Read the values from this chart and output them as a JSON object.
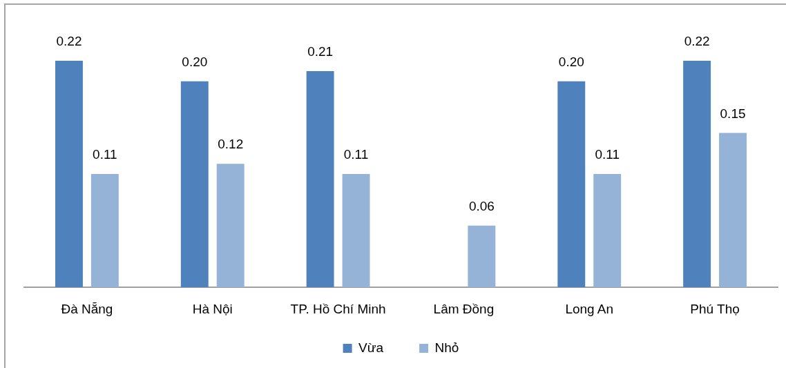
{
  "chart_data": {
    "type": "bar",
    "categories": [
      "Đà Nẵng",
      "Hà Nội",
      "TP. Hồ Chí Minh",
      "Lâm Đồng",
      "Long An",
      "Phú Thọ"
    ],
    "series": [
      {
        "name": "Vừa",
        "color": "#4f81bd",
        "values": [
          0.22,
          0.2,
          0.21,
          null,
          0.2,
          0.22
        ],
        "value_labels": [
          "0.22",
          "0.20",
          "0.21",
          null,
          "0.20",
          "0.22"
        ]
      },
      {
        "name": "Nhỏ",
        "color": "#95b3d7",
        "values": [
          0.11,
          0.12,
          0.11,
          0.06,
          0.11,
          0.15
        ],
        "value_labels": [
          "0.11",
          "0.12",
          "0.11",
          "0.06",
          "0.11",
          "0.15"
        ]
      }
    ],
    "legend": "bottom"
  }
}
